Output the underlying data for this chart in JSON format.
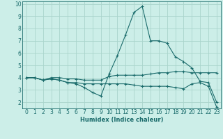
{
  "xlabel": "Humidex (Indice chaleur)",
  "bg_color": "#cceee8",
  "grid_color": "#aad4cc",
  "line_color": "#1a6b6b",
  "marker": "+",
  "xlim": [
    -0.5,
    23.5
  ],
  "ylim": [
    1.5,
    10.2
  ],
  "xticks": [
    0,
    1,
    2,
    3,
    4,
    5,
    6,
    7,
    8,
    9,
    10,
    11,
    12,
    13,
    14,
    15,
    16,
    17,
    18,
    19,
    20,
    21,
    22,
    23
  ],
  "yticks": [
    2,
    3,
    4,
    5,
    6,
    7,
    8,
    9,
    10
  ],
  "series": [
    [
      0,
      4.0,
      1,
      4.0,
      2,
      3.8,
      3,
      4.0,
      4,
      4.0,
      5,
      3.9,
      6,
      3.9,
      7,
      3.8,
      8,
      3.8,
      9,
      3.8,
      10,
      4.1,
      11,
      4.2,
      12,
      4.2,
      13,
      4.2,
      14,
      4.2,
      15,
      4.3,
      16,
      4.4,
      17,
      4.4,
      18,
      4.5,
      19,
      4.5,
      20,
      4.4,
      21,
      4.4,
      22,
      4.4,
      23,
      4.4
    ],
    [
      0,
      4.0,
      1,
      4.0,
      2,
      3.8,
      3,
      3.9,
      4,
      3.8,
      5,
      3.6,
      6,
      3.6,
      7,
      3.5,
      8,
      3.5,
      9,
      3.5,
      10,
      3.5,
      11,
      3.5,
      12,
      3.5,
      13,
      3.4,
      14,
      3.3,
      15,
      3.3,
      16,
      3.3,
      17,
      3.3,
      18,
      3.2,
      19,
      3.1,
      20,
      3.5,
      21,
      3.6,
      22,
      3.3,
      23,
      1.6
    ],
    [
      0,
      4.0,
      1,
      4.0,
      2,
      3.8,
      3,
      3.9,
      4,
      3.8,
      5,
      3.6,
      6,
      3.5,
      7,
      3.2,
      8,
      2.8,
      9,
      2.5,
      10,
      4.3,
      11,
      5.8,
      12,
      7.5,
      13,
      9.3,
      14,
      9.8,
      15,
      7.0,
      16,
      7.0,
      17,
      6.8,
      18,
      5.7,
      19,
      5.3,
      20,
      4.8,
      21,
      3.7,
      22,
      3.6,
      23,
      2.0
    ]
  ]
}
